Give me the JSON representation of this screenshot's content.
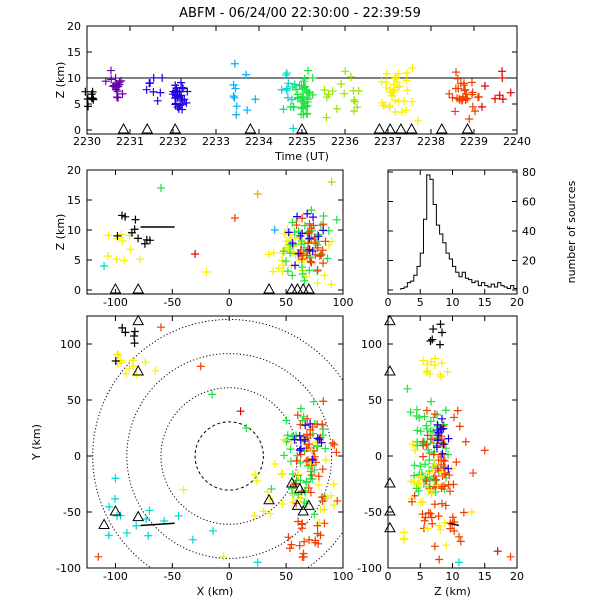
{
  "title": "ABFM - 06/24/00 22:30:00 - 22:39:59",
  "colors": {
    "series_by_minute": [
      "#000000",
      "#6a00a8",
      "#1f00e0",
      "#00b0ff",
      "#00d8c8",
      "#22e044",
      "#9ae600",
      "#f8f000",
      "#ffa000",
      "#f04000",
      "#e00000"
    ],
    "stations": "#000000",
    "rings": "#000000"
  },
  "chart_data": [
    {
      "id": "time-height",
      "type": "scatter",
      "xlabel": "Time (UT)",
      "ylabel": "Z (km)",
      "xlim": [
        2230,
        2240
      ],
      "ylim": [
        0,
        20
      ],
      "xticks": [
        "2230",
        "2231",
        "2232",
        "2233",
        "2234",
        "2235",
        "2236",
        "2237",
        "2238",
        "2239",
        "2240"
      ],
      "yticks": [
        "0",
        "5",
        "10",
        "15",
        "20"
      ],
      "reference_line_y": 10,
      "station_times": [
        2230.85,
        2231.4,
        2232.05,
        2233.8,
        2235.0,
        2236.8,
        2237.05,
        2237.3,
        2237.55,
        2238.25,
        2238.85
      ],
      "clusters": [
        {
          "t": 2230.05,
          "z": 6.5,
          "spread_t": 0.08,
          "spread_z": 1.2,
          "n": 8,
          "c": 0
        },
        {
          "t": 2230.7,
          "z": 8.0,
          "spread_t": 0.1,
          "spread_z": 1.5,
          "n": 18,
          "c": 1
        },
        {
          "t": 2231.5,
          "z": 8.0,
          "spread_t": 0.15,
          "spread_z": 1.8,
          "n": 8,
          "c": 2
        },
        {
          "t": 2232.15,
          "z": 6.5,
          "spread_t": 0.08,
          "spread_z": 1.2,
          "n": 30,
          "c": 2
        },
        {
          "t": 2233.5,
          "z": 7.0,
          "spread_t": 0.2,
          "spread_z": 3.0,
          "n": 10,
          "c": 3
        },
        {
          "t": 2234.6,
          "z": 6.5,
          "spread_t": 0.15,
          "spread_z": 2.5,
          "n": 12,
          "c": 4
        },
        {
          "t": 2235.05,
          "z": 6.5,
          "spread_t": 0.12,
          "spread_z": 2.0,
          "n": 40,
          "c": 5
        },
        {
          "t": 2235.9,
          "z": 7.0,
          "spread_t": 0.3,
          "spread_z": 2.0,
          "n": 16,
          "c": 6
        },
        {
          "t": 2237.3,
          "z": 6.5,
          "spread_t": 0.25,
          "spread_z": 2.2,
          "n": 34,
          "c": 7
        },
        {
          "t": 2238.8,
          "z": 6.5,
          "spread_t": 0.15,
          "spread_z": 1.8,
          "n": 30,
          "c": 9
        },
        {
          "t": 2239.5,
          "z": 8.0,
          "spread_t": 0.2,
          "spread_z": 2.5,
          "n": 8,
          "c": 10
        }
      ]
    },
    {
      "id": "x-z",
      "type": "scatter",
      "xlabel": "",
      "ylabel": "Z (km)",
      "xlim": [
        -125,
        100
      ],
      "ylim": [
        0,
        20
      ],
      "xticks": [
        "-100",
        "-50",
        "0",
        "50",
        "100"
      ],
      "yticks": [
        "0",
        "5",
        "10",
        "15",
        "20"
      ],
      "station_x": [
        -100,
        -80,
        35,
        55,
        60,
        65,
        70
      ],
      "clusters": [
        {
          "x": -92,
          "z": 8.0,
          "sx": 10,
          "sz": 2.0,
          "n": 10,
          "c": 7
        },
        {
          "x": -88,
          "z": 9.0,
          "sx": 12,
          "sz": 1.5,
          "n": 10,
          "c": 0
        },
        {
          "x": 60,
          "z": 6.0,
          "sx": 14,
          "sz": 2.5,
          "n": 40,
          "c": 7
        },
        {
          "x": 65,
          "z": 7.0,
          "sx": 12,
          "sz": 3.0,
          "n": 40,
          "c": 5
        },
        {
          "x": 70,
          "z": 7.0,
          "sx": 8,
          "sz": 2.5,
          "n": 30,
          "c": 9
        },
        {
          "x": 68,
          "z": 8.0,
          "sx": 8,
          "sz": 3.0,
          "n": 14,
          "c": 2
        }
      ]
    },
    {
      "id": "histogram",
      "type": "bar",
      "xlabel": "",
      "ylabel": "number of sources",
      "xlim": [
        0,
        20
      ],
      "ylim": [
        0,
        80
      ],
      "xticks": [
        "0",
        "5",
        "10",
        "15",
        "20"
      ],
      "yticks": [
        "0",
        "20",
        "40",
        "60",
        "80"
      ],
      "bin_width": 0.5,
      "bin_starts": [
        2,
        2.5,
        3,
        3.5,
        4,
        4.5,
        5,
        5.5,
        6,
        6.5,
        7,
        7.5,
        8,
        8.5,
        9,
        9.5,
        10,
        10.5,
        11,
        11.5,
        12,
        12.5,
        13,
        13.5,
        14,
        14.5,
        15,
        15.5,
        16,
        16.5,
        17,
        17.5,
        18,
        18.5,
        19,
        19.5
      ],
      "values": [
        1,
        2,
        5,
        6,
        10,
        16,
        25,
        48,
        78,
        75,
        58,
        44,
        38,
        32,
        25,
        21,
        16,
        12,
        9,
        12,
        8,
        7,
        5,
        6,
        3,
        5,
        3,
        2,
        4,
        2,
        5,
        3,
        2,
        1,
        3,
        1
      ]
    },
    {
      "id": "plan-view",
      "type": "scatter",
      "xlabel": "X (km)",
      "ylabel": "Y (km)",
      "xlim": [
        -125,
        100
      ],
      "ylim": [
        -100,
        125
      ],
      "xticks": [
        "-100",
        "-50",
        "0",
        "50",
        "100"
      ],
      "yticks": [
        "-100",
        "-50",
        "0",
        "50",
        "100"
      ],
      "range_rings_km": [
        30,
        60,
        90,
        120
      ],
      "stations": [
        [
          -80,
          120
        ],
        [
          -80,
          75
        ],
        [
          -80,
          -55
        ],
        [
          -100,
          -50
        ],
        [
          -110,
          -62
        ],
        [
          35,
          -40
        ],
        [
          55,
          -25
        ],
        [
          60,
          -45
        ],
        [
          62,
          -30
        ],
        [
          70,
          -45
        ],
        [
          65,
          -50
        ]
      ],
      "clusters": [
        {
          "x": -85,
          "y": 80,
          "sx": 8,
          "sy": 8,
          "n": 12,
          "c": 7
        },
        {
          "x": -90,
          "y": 100,
          "sx": 8,
          "sy": 8,
          "n": 6,
          "c": 0
        },
        {
          "x": 65,
          "y": 0,
          "sx": 12,
          "sy": 25,
          "n": 50,
          "c": 5
        },
        {
          "x": 72,
          "y": -10,
          "sx": 10,
          "sy": 30,
          "n": 50,
          "c": 9
        },
        {
          "x": 60,
          "y": -20,
          "sx": 15,
          "sy": 25,
          "n": 30,
          "c": 7
        },
        {
          "x": 70,
          "y": 15,
          "sx": 8,
          "sy": 10,
          "n": 12,
          "c": 2
        },
        {
          "x": -70,
          "y": -65,
          "sx": 25,
          "sy": 15,
          "n": 14,
          "c": 4
        },
        {
          "x": 72,
          "y": -75,
          "sx": 10,
          "sy": 12,
          "n": 14,
          "c": 9
        }
      ]
    },
    {
      "id": "z-y",
      "type": "scatter",
      "xlabel": "Z (km)",
      "ylabel": "",
      "xlim": [
        0,
        20
      ],
      "ylim": [
        -100,
        125
      ],
      "xticks": [
        "0",
        "5",
        "10",
        "15",
        "20"
      ],
      "stations": [
        [
          0.3,
          120
        ],
        [
          0.3,
          75
        ],
        [
          0.3,
          -25
        ],
        [
          0.3,
          -50
        ],
        [
          0.3,
          -65
        ]
      ],
      "clusters": [
        {
          "z": 7.5,
          "y": 80,
          "sz": 1.2,
          "sy": 6,
          "n": 12,
          "c": 7
        },
        {
          "z": 7.5,
          "y": 105,
          "sz": 1.0,
          "sy": 10,
          "n": 6,
          "c": 0
        },
        {
          "z": 6.5,
          "y": 0,
          "sz": 1.5,
          "sy": 25,
          "n": 60,
          "c": 5
        },
        {
          "z": 8.0,
          "y": -10,
          "sz": 2.0,
          "sy": 30,
          "n": 60,
          "c": 9
        },
        {
          "z": 6.0,
          "y": -25,
          "sz": 2.0,
          "sy": 25,
          "n": 30,
          "c": 7
        },
        {
          "z": 7.5,
          "y": 15,
          "sz": 1.5,
          "sy": 10,
          "n": 14,
          "c": 2
        },
        {
          "z": 8.5,
          "y": -60,
          "sz": 2.5,
          "sy": 15,
          "n": 14,
          "c": 9
        }
      ]
    }
  ]
}
